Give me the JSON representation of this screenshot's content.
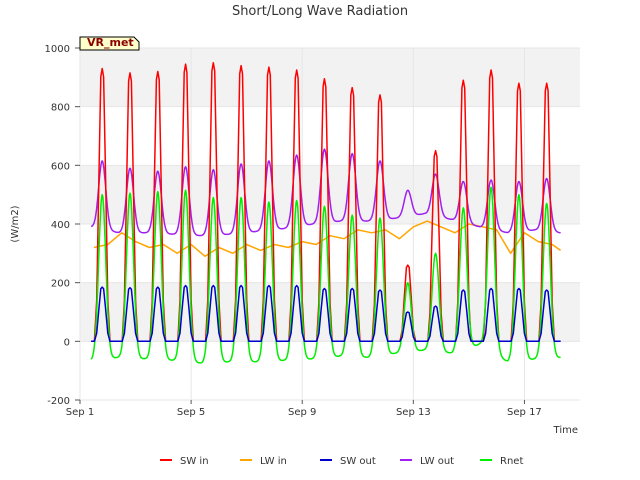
{
  "chart_data": {
    "type": "line",
    "title": "Short/Long Wave Radiation",
    "xlabel": "Time",
    "ylabel": "(W/m2)",
    "badge": "VR_met",
    "xlim": [
      1.0,
      19.0
    ],
    "ylim": [
      -200,
      1000
    ],
    "x_ticks": [
      {
        "value": 1,
        "label": "Sep 1"
      },
      {
        "value": 5,
        "label": "Sep 5"
      },
      {
        "value": 9,
        "label": "Sep 9"
      },
      {
        "value": 13,
        "label": "Sep 13"
      },
      {
        "value": 17,
        "label": "Sep 17"
      }
    ],
    "y_ticks": [
      -200,
      0,
      200,
      400,
      600,
      800,
      1000
    ],
    "grid": true,
    "legend_position": "bottom",
    "series": [
      {
        "name": "SW in",
        "color": "#ff0000",
        "x_unit": "day of September (fractional)",
        "peaks": [
          [
            1.8,
            930
          ],
          [
            2.8,
            915
          ],
          [
            3.8,
            920
          ],
          [
            4.8,
            945
          ],
          [
            5.8,
            950
          ],
          [
            6.8,
            940
          ],
          [
            7.8,
            935
          ],
          [
            8.8,
            925
          ],
          [
            9.8,
            895
          ],
          [
            10.8,
            865
          ],
          [
            11.8,
            840
          ],
          [
            12.8,
            260
          ],
          [
            13.8,
            650
          ],
          [
            14.8,
            890
          ],
          [
            15.8,
            925
          ],
          [
            16.8,
            880
          ],
          [
            17.8,
            880
          ]
        ],
        "night_value": 0
      },
      {
        "name": "LW in",
        "color": "#ffa500",
        "points": [
          [
            1.5,
            320
          ],
          [
            2.0,
            330
          ],
          [
            2.5,
            370
          ],
          [
            3.0,
            340
          ],
          [
            3.5,
            320
          ],
          [
            4.0,
            330
          ],
          [
            4.5,
            300
          ],
          [
            5.0,
            330
          ],
          [
            5.5,
            290
          ],
          [
            6.0,
            320
          ],
          [
            6.5,
            300
          ],
          [
            7.0,
            330
          ],
          [
            7.5,
            310
          ],
          [
            8.0,
            330
          ],
          [
            8.5,
            320
          ],
          [
            9.0,
            340
          ],
          [
            9.5,
            330
          ],
          [
            10.0,
            360
          ],
          [
            10.5,
            350
          ],
          [
            11.0,
            380
          ],
          [
            11.5,
            370
          ],
          [
            12.0,
            380
          ],
          [
            12.5,
            350
          ],
          [
            13.0,
            390
          ],
          [
            13.5,
            410
          ],
          [
            14.0,
            390
          ],
          [
            14.5,
            370
          ],
          [
            15.0,
            400
          ],
          [
            15.5,
            390
          ],
          [
            16.0,
            380
          ],
          [
            16.5,
            300
          ],
          [
            17.0,
            370
          ],
          [
            17.5,
            340
          ],
          [
            18.0,
            330
          ],
          [
            18.3,
            310
          ]
        ]
      },
      {
        "name": "SW out",
        "color": "#0000cd",
        "peaks": [
          [
            1.8,
            185
          ],
          [
            2.8,
            183
          ],
          [
            3.8,
            185
          ],
          [
            4.8,
            190
          ],
          [
            5.8,
            190
          ],
          [
            6.8,
            190
          ],
          [
            7.8,
            190
          ],
          [
            8.8,
            190
          ],
          [
            9.8,
            180
          ],
          [
            10.8,
            180
          ],
          [
            11.8,
            175
          ],
          [
            12.8,
            100
          ],
          [
            13.8,
            120
          ],
          [
            14.8,
            175
          ],
          [
            15.8,
            180
          ],
          [
            16.8,
            180
          ],
          [
            17.8,
            175
          ]
        ],
        "night_value": 0
      },
      {
        "name": "LW out",
        "color": "#a020f0",
        "night_base": [
          [
            1.4,
            390
          ],
          [
            2.4,
            370
          ],
          [
            3.4,
            370
          ],
          [
            4.4,
            365
          ],
          [
            5.4,
            360
          ],
          [
            6.4,
            365
          ],
          [
            7.4,
            375
          ],
          [
            8.4,
            385
          ],
          [
            9.4,
            400
          ],
          [
            10.4,
            410
          ],
          [
            11.4,
            410
          ],
          [
            12.4,
            420
          ],
          [
            13.4,
            435
          ],
          [
            14.4,
            415
          ],
          [
            15.4,
            390
          ],
          [
            16.4,
            370
          ],
          [
            17.4,
            380
          ],
          [
            18.3,
            370
          ]
        ],
        "peaks": [
          [
            1.8,
            615
          ],
          [
            2.8,
            590
          ],
          [
            3.8,
            580
          ],
          [
            4.8,
            595
          ],
          [
            5.8,
            585
          ],
          [
            6.8,
            605
          ],
          [
            7.8,
            615
          ],
          [
            8.8,
            635
          ],
          [
            9.8,
            655
          ],
          [
            10.8,
            640
          ],
          [
            11.8,
            615
          ],
          [
            12.8,
            515
          ],
          [
            13.8,
            570
          ],
          [
            14.8,
            545
          ],
          [
            15.8,
            550
          ],
          [
            16.8,
            545
          ],
          [
            17.8,
            555
          ]
        ]
      },
      {
        "name": "Rnet",
        "color": "#00ee00",
        "peaks": [
          [
            1.8,
            500
          ],
          [
            2.8,
            505
          ],
          [
            3.8,
            510
          ],
          [
            4.8,
            515
          ],
          [
            5.8,
            490
          ],
          [
            6.8,
            490
          ],
          [
            7.8,
            475
          ],
          [
            8.8,
            480
          ],
          [
            9.8,
            460
          ],
          [
            10.8,
            430
          ],
          [
            11.8,
            420
          ],
          [
            12.8,
            200
          ],
          [
            13.8,
            300
          ],
          [
            14.8,
            455
          ],
          [
            15.8,
            525
          ],
          [
            16.8,
            500
          ],
          [
            17.8,
            470
          ]
        ],
        "night_values": [
          [
            1.4,
            -65
          ],
          [
            2.4,
            -55
          ],
          [
            3.4,
            -60
          ],
          [
            4.4,
            -65
          ],
          [
            5.4,
            -75
          ],
          [
            6.4,
            -70
          ],
          [
            7.4,
            -70
          ],
          [
            8.4,
            -65
          ],
          [
            9.4,
            -60
          ],
          [
            10.4,
            -50
          ],
          [
            11.4,
            -55
          ],
          [
            12.4,
            -40
          ],
          [
            13.4,
            -30
          ],
          [
            14.4,
            -40
          ],
          [
            15.4,
            -10
          ],
          [
            16.4,
            -70
          ],
          [
            17.4,
            -60
          ],
          [
            18.3,
            -55
          ]
        ]
      }
    ]
  }
}
